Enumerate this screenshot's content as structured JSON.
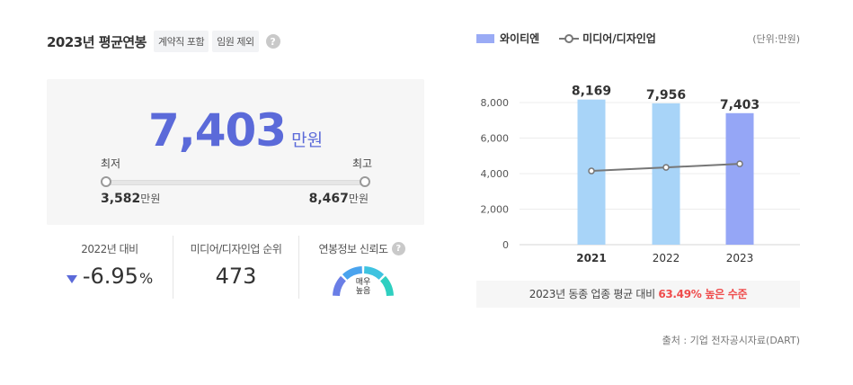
{
  "header": {
    "title": "2023년 평균연봉",
    "tags": [
      "계약직 포함",
      "임원 제외"
    ],
    "help_glyph": "?"
  },
  "salary": {
    "average": "7,403",
    "unit": "만원",
    "min_label": "최저",
    "max_label": "최고",
    "min_value": "3,582",
    "max_value": "8,467",
    "value_unit": "만원"
  },
  "stats": {
    "yoy": {
      "label": "2022년 대비",
      "value": "-6.95",
      "suffix": "%",
      "direction": "down",
      "color": "#5b6ad9"
    },
    "rank": {
      "label": "미디어/디자인업 순위",
      "value": "473"
    },
    "reliability": {
      "label": "연봉정보 신뢰도",
      "gauge_text_1": "매우",
      "gauge_text_2": "높음",
      "level": 1.0
    }
  },
  "legend": {
    "bar_name": "와이티엔",
    "line_name": "미디어/디자인업",
    "unit_note": "(단위:만원)"
  },
  "chart_data": {
    "type": "bar",
    "categories": [
      "2021",
      "2022",
      "2023"
    ],
    "series": [
      {
        "name": "와이티엔",
        "type": "bar",
        "values": [
          8169,
          7956,
          7403
        ],
        "labels": [
          "8,169",
          "7,956",
          "7,403"
        ],
        "colors": [
          "#a8d4f8",
          "#a8d4f8",
          "#95a6f6"
        ]
      },
      {
        "name": "미디어/디자인업",
        "type": "line",
        "values": [
          4150,
          4350,
          4550
        ],
        "color": "#777777"
      }
    ],
    "ylim": [
      0,
      8000
    ],
    "yticks": [
      0,
      2000,
      4000,
      6000,
      8000
    ],
    "ytick_labels": [
      "0",
      "2,000",
      "4,000",
      "6,000",
      "8,000"
    ],
    "grid": true
  },
  "footer": {
    "note_prefix": "2023년 동종 업종 평균 대비",
    "note_highlight": "63.49% 높은 수준",
    "source": "출처 : 기업 전자공시자료(DART)"
  }
}
